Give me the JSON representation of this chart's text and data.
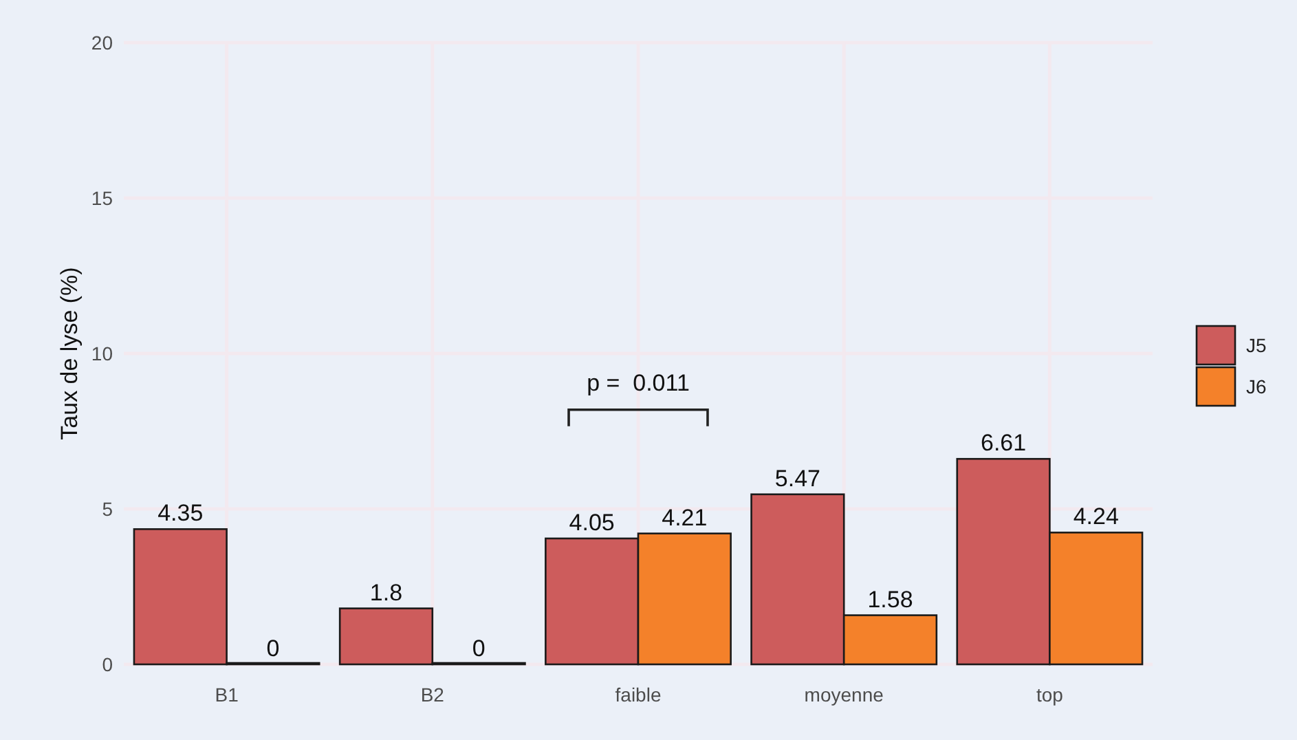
{
  "chart_data": {
    "type": "bar",
    "ylabel": "Taux de lyse (%)",
    "categories": [
      "B1",
      "B2",
      "faible",
      "moyenne",
      "top"
    ],
    "series": [
      {
        "name": "J5",
        "color": "#cd5c5c",
        "values": [
          4.35,
          1.8,
          4.05,
          5.47,
          6.61
        ]
      },
      {
        "name": "J6",
        "color": "#f4812a",
        "values": [
          0,
          0,
          4.21,
          1.58,
          4.24
        ]
      }
    ],
    "ylim": [
      0,
      20
    ],
    "yticks": [
      0,
      5,
      10,
      15,
      20
    ],
    "grid": true,
    "legend": "right",
    "data_labels": true,
    "annotations": [
      "p =  0.011"
    ]
  }
}
